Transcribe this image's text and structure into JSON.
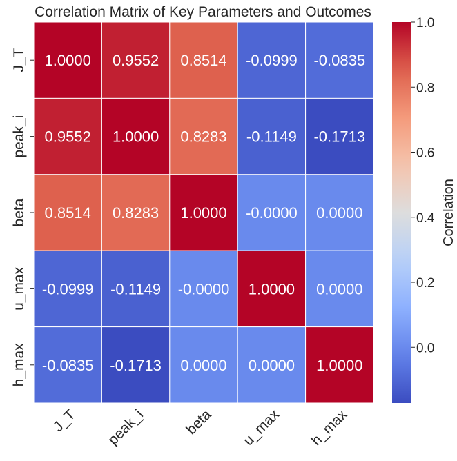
{
  "chart_data": {
    "type": "heatmap",
    "title": "Correlation Matrix of Key Parameters and Outcomes",
    "rows": [
      "J_T",
      "peak_i",
      "beta",
      "u_max",
      "h_max"
    ],
    "columns": [
      "J_T",
      "peak_i",
      "beta",
      "u_max",
      "h_max"
    ],
    "values": [
      [
        1.0,
        0.9552,
        0.8514,
        -0.0999,
        -0.0835
      ],
      [
        0.9552,
        1.0,
        0.8283,
        -0.1149,
        -0.1713
      ],
      [
        0.8514,
        0.8283,
        1.0,
        -0.0,
        0.0
      ],
      [
        -0.0999,
        -0.1149,
        -0.0,
        1.0,
        0.0
      ],
      [
        -0.0835,
        -0.1713,
        0.0,
        0.0,
        1.0
      ]
    ],
    "cell_labels": [
      [
        "1.0000",
        "0.9552",
        "0.8514",
        "-0.0999",
        "-0.0835"
      ],
      [
        "0.9552",
        "1.0000",
        "0.8283",
        "-0.1149",
        "-0.1713"
      ],
      [
        "0.8514",
        "0.8283",
        "1.0000",
        "-0.0000",
        "0.0000"
      ],
      [
        "-0.0999",
        "-0.1149",
        "-0.0000",
        "1.0000",
        "0.0000"
      ],
      [
        "-0.0835",
        "-0.1713",
        "0.0000",
        "0.0000",
        "1.0000"
      ]
    ],
    "colormap": "coolwarm",
    "colorbar": {
      "label": "Correlation",
      "range": [
        -0.1713,
        1.0
      ],
      "ticks": [
        0.0,
        0.2,
        0.4,
        0.6,
        0.8,
        1.0
      ],
      "tick_labels": [
        "0.0",
        "0.2",
        "0.4",
        "0.6",
        "0.8",
        "1.0"
      ]
    },
    "grid": true,
    "gridline_color": "#ffffff"
  }
}
